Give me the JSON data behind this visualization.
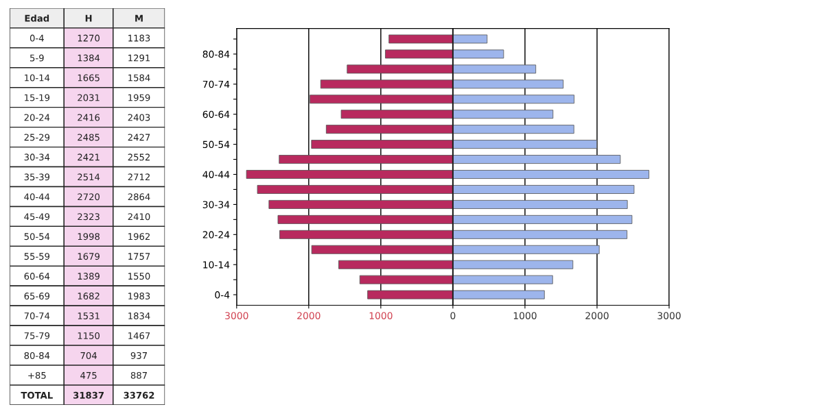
{
  "chart_data": [
    {
      "type": "other",
      "annotations": [
        "Edad",
        "H",
        "M",
        "0-4",
        "1270",
        "1183",
        "5-9",
        "1384",
        "1291",
        "10-14",
        "1665",
        "1584",
        "15-19",
        "2031",
        "1959",
        "20-24",
        "2416",
        "2403",
        "25-29",
        "2485",
        "2427",
        "30-34",
        "2421",
        "2552",
        "35-39",
        "2514",
        "2712",
        "40-44",
        "2720",
        "2864",
        "45-49",
        "2323",
        "2410",
        "50-54",
        "1998",
        "1962",
        "55-59",
        "1679",
        "1757",
        "60-64",
        "1389",
        "1550",
        "65-69",
        "1682",
        "1983",
        "70-74",
        "1531",
        "1834",
        "75-79",
        "1150",
        "1467",
        "80-84",
        "704",
        "937",
        "+85",
        "475",
        "887",
        "TOTAL",
        "31837",
        "33762"
      ]
    },
    {
      "type": "bar",
      "orientation": "horizontal",
      "stacked": true,
      "categories": [
        null,
        "80-84",
        null,
        "70-74",
        null,
        "60-64",
        null,
        "50-54",
        null,
        "40-44",
        null,
        "30-34",
        null,
        "20-24",
        null,
        "10-14",
        null,
        "0-4"
      ],
      "series": [
        {
          "color": "#9db5ec",
          "values": [
            475,
            704,
            1150,
            1531,
            1682,
            1389,
            1679,
            1998,
            2323,
            2720,
            2514,
            2421,
            2485,
            2416,
            2031,
            1665,
            1384,
            1270
          ]
        },
        {
          "color": "#b82a5e",
          "values": [
            -887,
            -937,
            -1467,
            -1834,
            -1983,
            -1550,
            -1757,
            -1962,
            -2410,
            -2864,
            -2712,
            -2552,
            -2427,
            -2403,
            -1959,
            -1584,
            -1291,
            -1183
          ]
        }
      ],
      "xlim": [
        -3000,
        3000
      ],
      "xticks": [
        {
          "value": -3000,
          "label": "3000"
        },
        {
          "value": -2000,
          "label": "2000"
        },
        {
          "value": -1000,
          "label": "1000"
        },
        0,
        1000,
        2000,
        3000
      ],
      "grid": "x"
    }
  ]
}
